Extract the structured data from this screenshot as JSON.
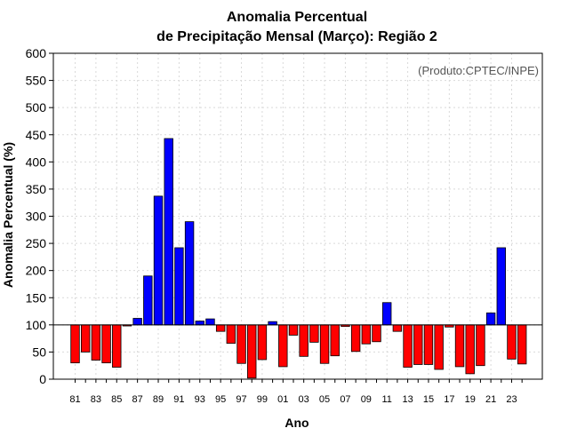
{
  "chart_data": {
    "type": "bar",
    "title": [
      "Anomalia Percentual",
      "de Precipitação Mensal (Março): Região 2"
    ],
    "xlabel": "Ano",
    "ylabel": "Anomalia Percentual (%)",
    "annotation": "(Produto:CPTEC/INPE)",
    "baseline": 100,
    "ylim": [
      0,
      600
    ],
    "yticks": [
      0,
      50,
      100,
      150,
      200,
      250,
      300,
      350,
      400,
      450,
      500,
      550,
      600
    ],
    "xtick_labels": [
      "81",
      "83",
      "85",
      "87",
      "89",
      "91",
      "93",
      "95",
      "97",
      "99",
      "01",
      "03",
      "05",
      "07",
      "09",
      "11",
      "13",
      "15",
      "17",
      "19",
      "21",
      "23"
    ],
    "grid": true,
    "colors": {
      "above": "#0000ff",
      "below": "#ff0000",
      "edge": "#000000",
      "grid": "#d9d9d9"
    },
    "categories": [
      "1981",
      "1982",
      "1983",
      "1984",
      "1985",
      "1986",
      "1987",
      "1988",
      "1989",
      "1990",
      "1991",
      "1992",
      "1993",
      "1994",
      "1995",
      "1996",
      "1997",
      "1998",
      "1999",
      "2000",
      "2001",
      "2002",
      "2003",
      "2004",
      "2005",
      "2006",
      "2007",
      "2008",
      "2009",
      "2010",
      "2011",
      "2012",
      "2013",
      "2014",
      "2015",
      "2016",
      "2017",
      "2018",
      "2019",
      "2020",
      "2021",
      "2022",
      "2023",
      "2024"
    ],
    "values": [
      30,
      50,
      35,
      30,
      22,
      98,
      112,
      190,
      337,
      443,
      242,
      290,
      107,
      111,
      88,
      66,
      29,
      2,
      36,
      106,
      23,
      81,
      42,
      68,
      29,
      43,
      97,
      51,
      65,
      69,
      141,
      88,
      22,
      27,
      27,
      18,
      96,
      23,
      10,
      25,
      122,
      242,
      37,
      28
    ]
  }
}
